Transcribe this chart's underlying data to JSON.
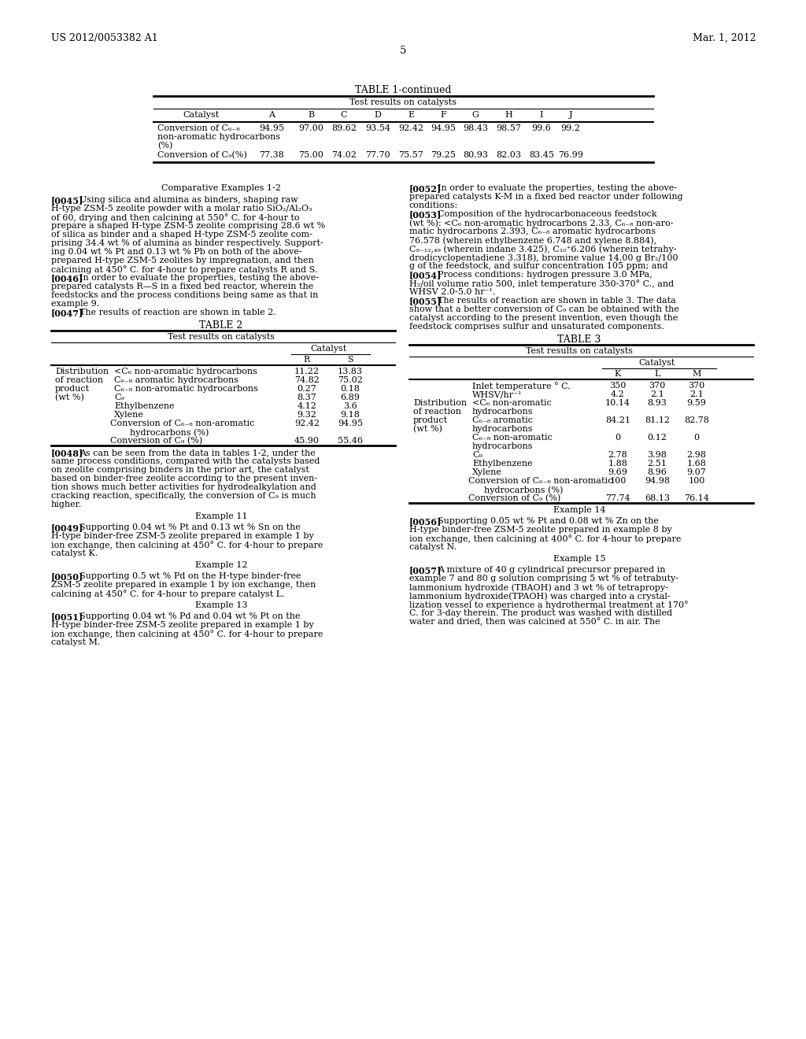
{
  "page_number": "5",
  "header_left": "US 2012/0053382 A1",
  "header_right": "Mar. 1, 2012",
  "background_color": "#ffffff",
  "text_color": "#000000"
}
